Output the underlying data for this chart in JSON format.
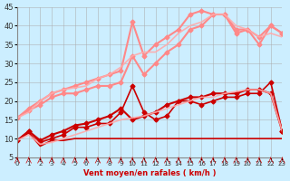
{
  "title": "",
  "xlabel": "Vent moyen/en rafales ( km/h )",
  "ylabel": "",
  "xlim": [
    0,
    23
  ],
  "ylim": [
    5,
    45
  ],
  "yticks": [
    5,
    10,
    15,
    20,
    25,
    30,
    35,
    40,
    45
  ],
  "xticks": [
    0,
    1,
    2,
    3,
    4,
    5,
    6,
    7,
    8,
    9,
    10,
    11,
    12,
    13,
    14,
    15,
    16,
    17,
    18,
    19,
    20,
    21,
    22,
    23
  ],
  "bg_color": "#cceeff",
  "grid_color": "#aaaaaa",
  "series": [
    {
      "x": [
        0,
        1,
        2,
        3,
        4,
        5,
        6,
        7,
        8,
        9,
        10,
        11,
        12,
        13,
        14,
        15,
        16,
        17,
        18,
        19,
        20,
        21,
        22,
        23
      ],
      "y": [
        9.5,
        11.5,
        8,
        9.5,
        9.5,
        10,
        10,
        10,
        10,
        10,
        10,
        10,
        10,
        10,
        10,
        10,
        10,
        10,
        10,
        10,
        10,
        10,
        10,
        10
      ],
      "color": "#cc0000",
      "lw": 1.2,
      "marker": null,
      "alpha": 1.0
    },
    {
      "x": [
        0,
        1,
        2,
        3,
        4,
        5,
        6,
        7,
        8,
        9,
        10,
        11,
        12,
        13,
        14,
        15,
        16,
        17,
        18,
        19,
        20,
        21,
        22,
        23
      ],
      "y": [
        9.5,
        12,
        9,
        10,
        11,
        13,
        13,
        14,
        14,
        17,
        24,
        17,
        15,
        16,
        20,
        20,
        19,
        20,
        21,
        21,
        22,
        22,
        25,
        12
      ],
      "color": "#cc0000",
      "lw": 1.2,
      "marker": "D",
      "markersize": 2.5,
      "alpha": 1.0
    },
    {
      "x": [
        0,
        1,
        2,
        3,
        4,
        5,
        6,
        7,
        8,
        9,
        10,
        11,
        12,
        13,
        14,
        15,
        16,
        17,
        18,
        19,
        20,
        21,
        22,
        23
      ],
      "y": [
        9.5,
        12,
        9.5,
        11,
        12,
        13.5,
        14,
        15,
        16,
        18,
        15,
        16,
        17,
        19,
        20,
        21,
        21,
        22,
        22,
        22,
        23,
        23,
        22,
        12
      ],
      "color": "#cc0000",
      "lw": 1.5,
      "marker": "D",
      "markersize": 2.5,
      "alpha": 1.0
    },
    {
      "x": [
        0,
        1,
        2,
        3,
        4,
        5,
        6,
        7,
        8,
        9,
        10,
        11,
        12,
        13,
        14,
        15,
        16,
        17,
        18,
        19,
        20,
        21,
        22,
        23
      ],
      "y": [
        15.5,
        17.5,
        19,
        21,
        22,
        22,
        23,
        24,
        24,
        25,
        32,
        27,
        30,
        33,
        35,
        39,
        40,
        43,
        43,
        38,
        39,
        35,
        40,
        38
      ],
      "color": "#ff8888",
      "lw": 1.5,
      "marker": "D",
      "markersize": 2.5,
      "alpha": 1.0
    },
    {
      "x": [
        0,
        1,
        2,
        3,
        4,
        5,
        6,
        7,
        8,
        9,
        10,
        11,
        12,
        13,
        14,
        15,
        16,
        17,
        18,
        19,
        20,
        21,
        22,
        23
      ],
      "y": [
        15.5,
        18,
        20,
        22,
        23,
        24,
        25,
        26,
        27,
        28,
        41,
        32,
        35,
        37,
        39,
        43,
        44,
        43,
        43,
        39,
        39,
        37,
        40,
        38
      ],
      "color": "#ff8888",
      "lw": 1.5,
      "marker": "D",
      "markersize": 2.5,
      "alpha": 1.0
    },
    {
      "x": [
        0,
        1,
        2,
        3,
        4,
        5,
        6,
        7,
        8,
        9,
        10,
        11,
        12,
        13,
        14,
        15,
        16,
        17,
        18,
        19,
        20,
        21,
        22,
        23
      ],
      "y": [
        15.5,
        17,
        20,
        22,
        23,
        23.5,
        24,
        26,
        27,
        29,
        32,
        33,
        33,
        35,
        38,
        40,
        41,
        43,
        43,
        40,
        39,
        37,
        38,
        37
      ],
      "color": "#ffaaaa",
      "lw": 1.2,
      "marker": null,
      "alpha": 0.9
    },
    {
      "x": [
        0,
        1,
        2,
        3,
        4,
        5,
        6,
        7,
        8,
        9,
        10,
        11,
        12,
        13,
        14,
        15,
        16,
        17,
        18,
        19,
        20,
        21,
        22,
        23
      ],
      "y": [
        9.5,
        11,
        8.5,
        9,
        10,
        11,
        12,
        13,
        14,
        15,
        15.5,
        16,
        17,
        18,
        19,
        20,
        21,
        21,
        22,
        22.5,
        23,
        23,
        22,
        12
      ],
      "color": "#ffaaaa",
      "lw": 1.2,
      "marker": null,
      "alpha": 0.9
    }
  ]
}
